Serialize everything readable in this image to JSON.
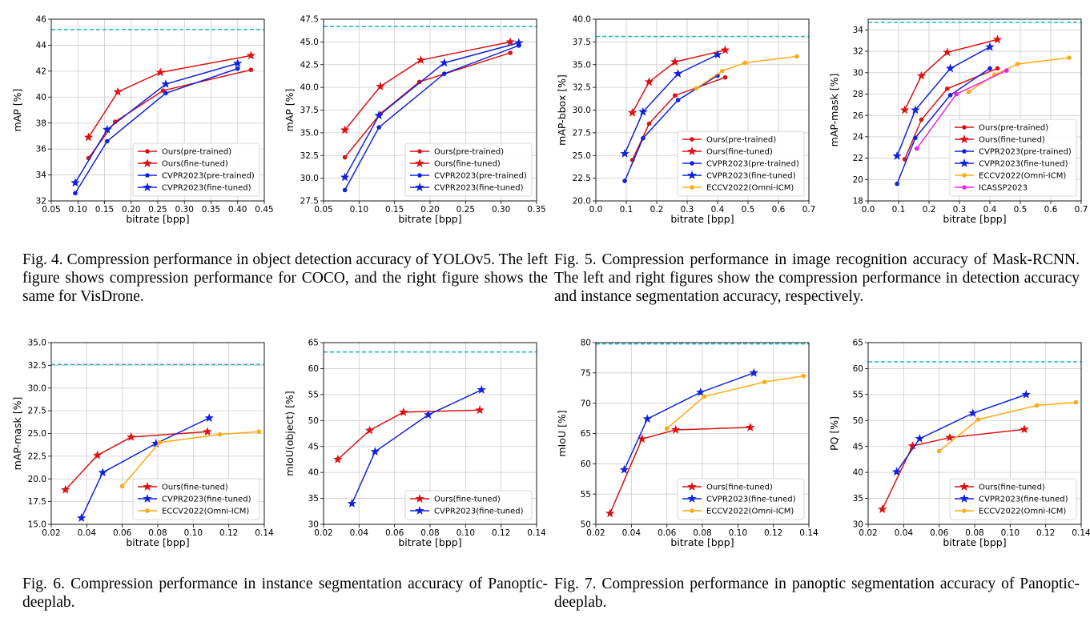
{
  "colors": {
    "red": "#dd1111",
    "blue": "#1122dd",
    "orange": "#ffaa11",
    "magenta": "#ee22ee",
    "ref": "#22bbbb",
    "grid": "#cccccc"
  },
  "captions": {
    "fig4": "Fig. 4.  Compression performance in object detection accuracy of YOLOv5. The left figure shows compression performance for COCO, and the right figure shows the same for VisDrone.",
    "fig5": "Fig. 5.  Compression performance in image recognition accuracy of Mask-RCNN. The left and right figures show the compression performance in detection accuracy and instance segmentation accuracy, respectively.",
    "fig6": "Fig. 6.  Compression performance in instance segmentation accuracy of Panoptic-deeplab.",
    "fig7": "Fig. 7.  Compression performance in panoptic segmentation accuracy of Panoptic-deeplab."
  },
  "chart_data": [
    {
      "id": "c1",
      "type": "line",
      "xlabel": "bitrate [bpp]",
      "ylabel": "mAP [%]",
      "xlim": [
        0.05,
        0.45
      ],
      "ylim": [
        32,
        46
      ],
      "xticks": [
        "0.05",
        "0.10",
        "0.15",
        "0.20",
        "0.25",
        "0.30",
        "0.35",
        "0.40",
        "0.45"
      ],
      "yticks": [
        "32",
        "34",
        "36",
        "38",
        "40",
        "42",
        "44",
        "46"
      ],
      "reference": 45.2,
      "legend_position": "lower-right",
      "series": [
        {
          "name": "Ours(pre-trained)",
          "color": "red",
          "marker": "dot",
          "x": [
            0.12,
            0.17,
            0.26,
            0.425
          ],
          "y": [
            35.3,
            38.1,
            40.5,
            42.1
          ]
        },
        {
          "name": "Ours(fine-tuned)",
          "color": "red",
          "marker": "star",
          "x": [
            0.12,
            0.175,
            0.255,
            0.425
          ],
          "y": [
            36.9,
            40.4,
            41.9,
            43.2
          ]
        },
        {
          "name": "CVPR2023(pre-trained)",
          "color": "blue",
          "marker": "dot",
          "x": [
            0.095,
            0.155,
            0.265,
            0.4
          ],
          "y": [
            32.6,
            36.6,
            40.3,
            42.2
          ]
        },
        {
          "name": "CVPR2023(fine-tuned)",
          "color": "blue",
          "marker": "star",
          "x": [
            0.095,
            0.155,
            0.265,
            0.4
          ],
          "y": [
            33.4,
            37.5,
            41.0,
            42.6
          ]
        }
      ]
    },
    {
      "id": "c2",
      "type": "line",
      "xlabel": "bitrate [bpp]",
      "ylabel": "mAP [%]",
      "xlim": [
        0.05,
        0.35
      ],
      "ylim": [
        27.5,
        47.5
      ],
      "xticks": [
        "0.05",
        "0.10",
        "0.15",
        "0.20",
        "0.25",
        "0.30",
        "0.35"
      ],
      "yticks": [
        "27.5",
        "30.0",
        "32.5",
        "35.0",
        "37.5",
        "40.0",
        "42.5",
        "45.0",
        "47.5"
      ],
      "reference": 46.7,
      "legend_position": "lower-right",
      "series": [
        {
          "name": "Ours(pre-trained)",
          "color": "red",
          "marker": "dot",
          "x": [
            0.08,
            0.13,
            0.185,
            0.313
          ],
          "y": [
            32.3,
            37.1,
            40.6,
            43.8
          ]
        },
        {
          "name": "Ours(fine-tuned)",
          "color": "red",
          "marker": "star",
          "x": [
            0.08,
            0.13,
            0.187,
            0.313
          ],
          "y": [
            35.3,
            40.1,
            43.0,
            45.0
          ]
        },
        {
          "name": "CVPR2023(pre-trained)",
          "color": "blue",
          "marker": "dot",
          "x": [
            0.08,
            0.128,
            0.22,
            0.325
          ],
          "y": [
            28.7,
            35.6,
            41.5,
            44.6
          ]
        },
        {
          "name": "CVPR2023(fine-tuned)",
          "color": "blue",
          "marker": "star",
          "x": [
            0.08,
            0.128,
            0.22,
            0.325
          ],
          "y": [
            30.1,
            36.9,
            42.7,
            44.9
          ]
        }
      ]
    },
    {
      "id": "c3",
      "type": "line",
      "xlabel": "bitrate [bpp]",
      "ylabel": "mAP-bbox [%]",
      "xlim": [
        0.0,
        0.7
      ],
      "ylim": [
        20,
        40
      ],
      "xticks": [
        "0.0",
        "0.1",
        "0.2",
        "0.3",
        "0.4",
        "0.5",
        "0.6",
        "0.7"
      ],
      "yticks": [
        "20.0",
        "22.5",
        "25.0",
        "27.5",
        "30.0",
        "32.5",
        "35.0",
        "37.5",
        "40.0"
      ],
      "reference": 38.1,
      "legend_position": "lower-right",
      "series": [
        {
          "name": "Ours(pre-trained)",
          "color": "red",
          "marker": "dot",
          "x": [
            0.12,
            0.175,
            0.26,
            0.425
          ],
          "y": [
            24.5,
            28.5,
            31.6,
            33.6
          ]
        },
        {
          "name": "Ours(fine-tuned)",
          "color": "red",
          "marker": "star",
          "x": [
            0.12,
            0.175,
            0.26,
            0.425
          ],
          "y": [
            29.7,
            33.1,
            35.3,
            36.6
          ]
        },
        {
          "name": "CVPR2023(pre-trained)",
          "color": "blue",
          "marker": "dot",
          "x": [
            0.095,
            0.155,
            0.27,
            0.4
          ],
          "y": [
            22.2,
            26.9,
            31.1,
            33.8
          ]
        },
        {
          "name": "CVPR2023(fine-tuned)",
          "color": "blue",
          "marker": "star",
          "x": [
            0.095,
            0.155,
            0.27,
            0.4
          ],
          "y": [
            25.2,
            29.8,
            34.0,
            36.1
          ]
        },
        {
          "name": "ECCV2022(Omni-ICM)",
          "color": "orange",
          "marker": "dot",
          "x": [
            0.33,
            0.415,
            0.49,
            0.66
          ],
          "y": [
            32.4,
            34.3,
            35.2,
            35.9
          ]
        }
      ]
    },
    {
      "id": "c4",
      "type": "line",
      "xlabel": "bitrate [bpp]",
      "ylabel": "mAP-mask [%]",
      "xlim": [
        0.0,
        0.7
      ],
      "ylim": [
        18,
        35
      ],
      "xticks": [
        "0.0",
        "0.1",
        "0.2",
        "0.3",
        "0.4",
        "0.5",
        "0.6",
        "0.7"
      ],
      "yticks": [
        "18",
        "20",
        "22",
        "24",
        "26",
        "28",
        "30",
        "32",
        "34"
      ],
      "reference": 34.7,
      "legend_position": "lower-right",
      "series": [
        {
          "name": "Ours(pre-trained)",
          "color": "red",
          "marker": "dot",
          "x": [
            0.12,
            0.175,
            0.26,
            0.425
          ],
          "y": [
            21.9,
            25.6,
            28.5,
            30.4
          ]
        },
        {
          "name": "Ours(fine-tuned)",
          "color": "red",
          "marker": "star",
          "x": [
            0.12,
            0.175,
            0.26,
            0.425
          ],
          "y": [
            26.5,
            29.7,
            31.9,
            33.1
          ]
        },
        {
          "name": "CVPR2023(pre-trained)",
          "color": "blue",
          "marker": "dot",
          "x": [
            0.095,
            0.155,
            0.27,
            0.4
          ],
          "y": [
            19.6,
            23.9,
            27.9,
            30.4
          ]
        },
        {
          "name": "CVPR2023(fine-tuned)",
          "color": "blue",
          "marker": "star",
          "x": [
            0.095,
            0.155,
            0.27,
            0.4
          ],
          "y": [
            22.2,
            26.5,
            30.4,
            32.4
          ]
        },
        {
          "name": "ECCV2022(Omni-ICM)",
          "color": "orange",
          "marker": "dot",
          "x": [
            0.33,
            0.415,
            0.49,
            0.66
          ],
          "y": [
            28.2,
            29.8,
            30.8,
            31.4
          ]
        },
        {
          "name": "ICASSP2023",
          "color": "magenta",
          "marker": "dot",
          "x": [
            0.16,
            0.29,
            0.455
          ],
          "y": [
            22.9,
            28.0,
            30.2
          ]
        }
      ]
    },
    {
      "id": "c5",
      "type": "line",
      "xlabel": "bitrate [bpp]",
      "ylabel": "mAP-mask [%]",
      "xlim": [
        0.02,
        0.14
      ],
      "ylim": [
        15,
        35
      ],
      "xticks": [
        "0.02",
        "0.04",
        "0.06",
        "0.08",
        "0.10",
        "0.12",
        "0.14"
      ],
      "yticks": [
        "15.0",
        "17.5",
        "20.0",
        "22.5",
        "25.0",
        "27.5",
        "30.0",
        "32.5",
        "35.0"
      ],
      "reference": 32.6,
      "legend_position": "lower-right",
      "series": [
        {
          "name": "Ours(fine-tuned)",
          "color": "red",
          "marker": "star",
          "x": [
            0.028,
            0.046,
            0.065,
            0.108
          ],
          "y": [
            18.8,
            22.6,
            24.6,
            25.2
          ]
        },
        {
          "name": "CVPR2023(fine-tuned)",
          "color": "blue",
          "marker": "star",
          "x": [
            0.037,
            0.049,
            0.079,
            0.109
          ],
          "y": [
            15.7,
            20.7,
            23.9,
            26.7
          ]
        },
        {
          "name": "ECCV2022(Omni-ICM)",
          "color": "orange",
          "marker": "dot",
          "x": [
            0.06,
            0.081,
            0.115,
            0.137
          ],
          "y": [
            19.2,
            24.0,
            24.9,
            25.2
          ]
        }
      ]
    },
    {
      "id": "c6",
      "type": "line",
      "xlabel": "bitrate [bpp]",
      "ylabel": "mIoU(object) [%]",
      "xlim": [
        0.02,
        0.14
      ],
      "ylim": [
        30,
        65
      ],
      "xticks": [
        "0.02",
        "0.04",
        "0.06",
        "0.08",
        "0.10",
        "0.12",
        "0.14"
      ],
      "yticks": [
        "30",
        "35",
        "40",
        "45",
        "50",
        "55",
        "60",
        "65"
      ],
      "reference": 63.2,
      "legend_position": "lower-right",
      "series": [
        {
          "name": "Ours(fine-tuned)",
          "color": "red",
          "marker": "star",
          "x": [
            0.028,
            0.046,
            0.065,
            0.108
          ],
          "y": [
            42.5,
            48.1,
            51.6,
            52.0
          ]
        },
        {
          "name": "CVPR2023(fine-tuned)",
          "color": "blue",
          "marker": "star",
          "x": [
            0.036,
            0.049,
            0.079,
            0.109
          ],
          "y": [
            34.0,
            44.0,
            51.1,
            55.9
          ]
        }
      ]
    },
    {
      "id": "c7",
      "type": "line",
      "xlabel": "bitrate [bpp]",
      "ylabel": "mIoU [%]",
      "xlim": [
        0.02,
        0.14
      ],
      "ylim": [
        50,
        80
      ],
      "xticks": [
        "0.02",
        "0.04",
        "0.06",
        "0.08",
        "0.10",
        "0.12",
        "0.14"
      ],
      "yticks": [
        "50",
        "55",
        "60",
        "65",
        "70",
        "75",
        "80"
      ],
      "reference": 79.8,
      "legend_position": "lower-right",
      "series": [
        {
          "name": "Ours(fine-tuned)",
          "color": "red",
          "marker": "star",
          "x": [
            0.028,
            0.046,
            0.065,
            0.107
          ],
          "y": [
            51.8,
            64.1,
            65.6,
            66.0
          ]
        },
        {
          "name": "CVPR2023(fine-tuned)",
          "color": "blue",
          "marker": "star",
          "x": [
            0.036,
            0.049,
            0.079,
            0.109
          ],
          "y": [
            59.0,
            67.4,
            71.8,
            75.0
          ]
        },
        {
          "name": "ECCV2022(Omni-ICM)",
          "color": "orange",
          "marker": "dot",
          "x": [
            0.06,
            0.081,
            0.115,
            0.137
          ],
          "y": [
            65.8,
            71.1,
            73.5,
            74.5
          ]
        }
      ]
    },
    {
      "id": "c8",
      "type": "line",
      "xlabel": "bitrate [bpp]",
      "ylabel": "PQ [%]",
      "xlim": [
        0.02,
        0.14
      ],
      "ylim": [
        30,
        65
      ],
      "xticks": [
        "0.02",
        "0.04",
        "0.06",
        "0.08",
        "0.10",
        "0.12",
        "0.14"
      ],
      "yticks": [
        "30",
        "35",
        "40",
        "45",
        "50",
        "55",
        "60",
        "65"
      ],
      "reference": 61.3,
      "legend_position": "lower-right",
      "series": [
        {
          "name": "Ours(fine-tuned)",
          "color": "red",
          "marker": "star",
          "x": [
            0.028,
            0.045,
            0.066,
            0.108
          ],
          "y": [
            32.9,
            45.1,
            46.7,
            48.3
          ]
        },
        {
          "name": "CVPR2023(fine-tuned)",
          "color": "blue",
          "marker": "star",
          "x": [
            0.036,
            0.049,
            0.079,
            0.109
          ],
          "y": [
            40.1,
            46.5,
            51.4,
            55.0
          ]
        },
        {
          "name": "ECCV2022(Omni-ICM)",
          "color": "orange",
          "marker": "dot",
          "x": [
            0.06,
            0.082,
            0.115,
            0.137
          ],
          "y": [
            44.1,
            50.2,
            52.9,
            53.5
          ]
        }
      ]
    }
  ]
}
